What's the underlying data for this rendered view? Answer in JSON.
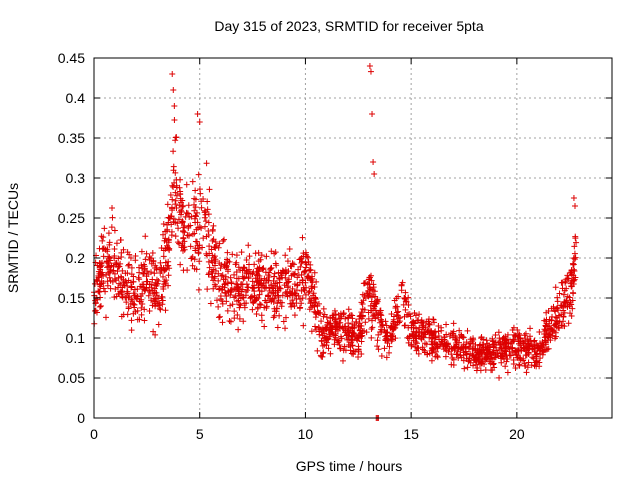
{
  "chart_data": {
    "type": "scatter",
    "title": "Day 315 of 2023, SRMTID for receiver 5pta",
    "xlabel": "GPS time / hours",
    "ylabel": "SRMTID / TECUs",
    "xlim": [
      0,
      24.5
    ],
    "ylim": [
      0,
      0.45
    ],
    "xticks": [
      "0",
      "5",
      "10",
      "15",
      "20"
    ],
    "xtick_values": [
      0,
      5,
      10,
      15,
      20
    ],
    "yticks": [
      "0",
      "0.05",
      "0.1",
      "0.15",
      "0.2",
      "0.25",
      "0.3",
      "0.35",
      "0.4",
      "0.45"
    ],
    "ytick_values": [
      0,
      0.05,
      0.1,
      0.15,
      0.2,
      0.25,
      0.3,
      0.35,
      0.4,
      0.45
    ],
    "grid": true,
    "marker": "+",
    "series": [
      {
        "name": "SRMTID",
        "color": "#dd0000",
        "profile": {
          "note": "approximate envelope of the dense point cloud (hour, typical TECU value)",
          "x": [
            0,
            0.5,
            1,
            1.5,
            2,
            2.5,
            3,
            3.5,
            3.8,
            4.2,
            4.8,
            5.2,
            5.8,
            6.5,
            7.5,
            8.5,
            9.5,
            10.2,
            10.8,
            11.5,
            12.5,
            13,
            13.5,
            14,
            14.5,
            15,
            16,
            17,
            18,
            19,
            20,
            21,
            21.5,
            22,
            22.5,
            22.8
          ],
          "y": [
            0.15,
            0.2,
            0.19,
            0.17,
            0.16,
            0.17,
            0.16,
            0.2,
            0.3,
            0.24,
            0.23,
            0.25,
            0.18,
            0.16,
            0.17,
            0.16,
            0.17,
            0.17,
            0.1,
            0.11,
            0.1,
            0.16,
            0.12,
            0.09,
            0.16,
            0.11,
            0.1,
            0.09,
            0.08,
            0.08,
            0.09,
            0.08,
            0.11,
            0.13,
            0.15,
            0.2
          ]
        },
        "samples_per_hour": 90,
        "highlights": [
          {
            "x": 13.05,
            "y": 0.44
          },
          {
            "x": 13.1,
            "y": 0.433
          },
          {
            "x": 13.15,
            "y": 0.38
          },
          {
            "x": 13.2,
            "y": 0.32
          },
          {
            "x": 13.25,
            "y": 0.305
          },
          {
            "x": 3.7,
            "y": 0.43
          },
          {
            "x": 3.75,
            "y": 0.41
          },
          {
            "x": 3.8,
            "y": 0.39
          },
          {
            "x": 4.9,
            "y": 0.38
          },
          {
            "x": 5.0,
            "y": 0.37
          },
          {
            "x": 22.7,
            "y": 0.275
          },
          {
            "x": 22.75,
            "y": 0.265
          },
          {
            "x": 13.35,
            "y": 0.0
          },
          {
            "x": 13.4,
            "y": 0.0
          },
          {
            "x": 13.45,
            "y": 0.0
          }
        ]
      }
    ]
  }
}
